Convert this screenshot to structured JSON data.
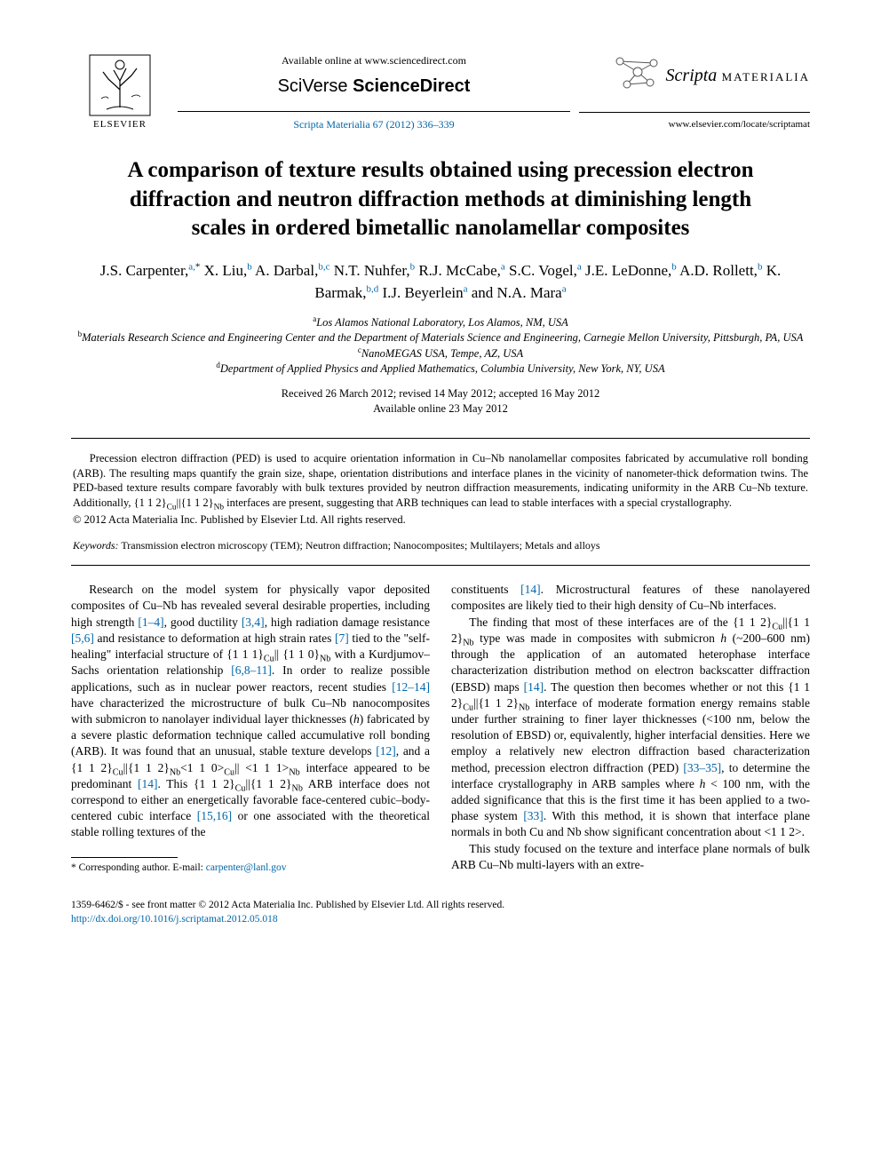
{
  "header": {
    "publisher_label": "ELSEVIER",
    "available_online": "Available online at www.sciencedirect.com",
    "sciverse_prefix": "SciVerse",
    "sciverse_main": " ScienceDirect",
    "journal_ref": "Scripta Materialia 67 (2012) 336–339",
    "scripta_italic": "Scripta",
    "scripta_caps": " MATERIALIA",
    "journal_url": "www.elsevier.com/locate/scriptamat"
  },
  "title": "A comparison of texture results obtained using precession electron diffraction and neutron diffraction methods at diminishing length scales in ordered bimetallic nanolamellar composites",
  "authors_html": "J.S. Carpenter,<sup>a,</sup><sup class=\"star\">*</sup> X. Liu,<sup>b</sup> A. Darbal,<sup>b,c</sup> N.T. Nuhfer,<sup>b</sup> R.J. McCabe,<sup>a</sup> S.C. Vogel,<sup>a</sup> J.E. LeDonne,<sup>b</sup> A.D. Rollett,<sup>b</sup> K. Barmak,<sup>b,d</sup> I.J. Beyerlein<sup>a</sup> and N.A. Mara<sup>a</sup>",
  "affiliations": {
    "a": "Los Alamos National Laboratory, Los Alamos, NM, USA",
    "b": "Materials Research Science and Engineering Center and the Department of Materials Science and Engineering, Carnegie Mellon University, Pittsburgh, PA, USA",
    "c": "NanoMEGAS USA, Tempe, AZ, USA",
    "d": "Department of Applied Physics and Applied Mathematics, Columbia University, New York, NY, USA"
  },
  "dates": {
    "received": "Received 26 March 2012; revised 14 May 2012; accepted 16 May 2012",
    "online": "Available online 23 May 2012"
  },
  "abstract_html": "Precession electron diffraction (PED) is used to acquire orientation information in Cu–Nb nanolamellar composites fabricated by accumulative roll bonding (ARB). The resulting maps quantify the grain size, shape, orientation distributions and interface planes in the vicinity of nanometer-thick deformation twins. The PED-based texture results compare favorably with bulk textures provided by neutron diffraction measurements, indicating uniformity in the ARB Cu–Nb texture. Additionally, {1 1 2}<sub>Cu</sub>||{1 1 2}<sub>Nb</sub> interfaces are present, suggesting that ARB techniques can lead to stable interfaces with a special crystallography.",
  "copyright": "© 2012 Acta Materialia Inc. Published by Elsevier Ltd. All rights reserved.",
  "keywords_label": "Keywords:",
  "keywords": " Transmission electron microscopy (TEM); Neutron diffraction; Nanocomposites; Multilayers; Metals and alloys",
  "body": {
    "col1_html": "Research on the model system for physically vapor deposited composites of Cu–Nb has revealed several desirable properties, including high strength <span class=\"ref-link\">[1–4]</span>, good ductility <span class=\"ref-link\">[3,4]</span>, high radiation damage resistance <span class=\"ref-link\">[5,6]</span> and resistance to deformation at high strain rates <span class=\"ref-link\">[7]</span> tied to the \"self-healing\" interfacial structure of {1 1 1}<sub>Cu</sub>|| {1 1 0}<sub>Nb</sub> with a Kurdjumov–Sachs orientation relationship <span class=\"ref-link\">[6,8–11]</span>. In order to realize possible applications, such as in nuclear power reactors, recent studies <span class=\"ref-link\">[12–14]</span> have characterized the microstructure of bulk Cu–Nb nanocomposites with submicron to nanolayer individual layer thicknesses (<i>h</i>) fabricated by a severe plastic deformation technique called accumulative roll bonding (ARB). It was found that an unusual, stable texture develops <span class=\"ref-link\">[12]</span>, and a {1 1 2}<sub>Cu</sub>||{1 1 2}<sub>Nb</sub>&lt;1 1 0&gt;<sub>Cu</sub>|| &lt;1 1 1&gt;<sub>Nb</sub> interface appeared to be predominant <span class=\"ref-link\">[14]</span>. This {1 1 2}<sub>Cu</sub>||{1 1 2}<sub>Nb</sub> ARB interface does not correspond to either an energetically favorable face-centered cubic–body-centered cubic interface <span class=\"ref-link\">[15,16]</span> or one associated with the theoretical stable rolling textures of the",
    "col2_p1_html": "constituents <span class=\"ref-link\">[14]</span>. Microstructural features of these nanolayered composites are likely tied to their high density of Cu–Nb interfaces.",
    "col2_p2_html": "The finding that most of these interfaces are of the {1 1 2}<sub>Cu</sub>||{1 1 2}<sub>Nb</sub> type was made in composites with submicron <i>h</i> (~200–600 nm) through the application of an automated heterophase interface characterization distribution method on electron backscatter diffraction (EBSD) maps <span class=\"ref-link\">[14]</span>. The question then becomes whether or not this {1 1 2}<sub>Cu</sub>||{1 1 2}<sub>Nb</sub> interface of moderate formation energy remains stable under further straining to finer layer thicknesses (&lt;100 nm, below the resolution of EBSD) or, equivalently, higher interfacial densities. Here we employ a relatively new electron diffraction based characterization method, precession electron diffraction (PED) <span class=\"ref-link\">[33–35]</span>, to determine the interface crystallography in ARB samples where <i>h</i> &lt; 100 nm, with the added significance that this is the first time it has been applied to a two-phase system <span class=\"ref-link\">[33]</span>. With this method, it is shown that interface plane normals in both Cu and Nb show significant concentration about &lt;1 1 2&gt;.",
    "col2_p3_html": "This study focused on the texture and interface plane normals of bulk ARB Cu–Nb multi-layers with an extre-"
  },
  "footnote": {
    "label": "* Corresponding author. E-mail: ",
    "email": "carpenter@lanl.gov"
  },
  "footer": {
    "line1": "1359-6462/$ - see front matter © 2012 Acta Materialia Inc. Published by Elsevier Ltd. All rights reserved.",
    "doi": "http://dx.doi.org/10.1016/j.scriptamat.2012.05.018"
  },
  "colors": {
    "link": "#0066aa",
    "text": "#000000",
    "background": "#ffffff"
  }
}
